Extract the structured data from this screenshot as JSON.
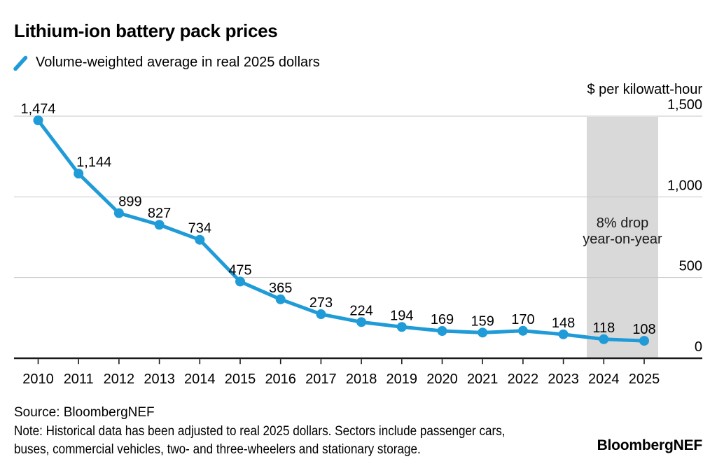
{
  "chart_data": {
    "type": "line",
    "title": "Lithium-ion battery pack prices",
    "legend": "Volume-weighted average in real 2025 dollars",
    "unit_label": "$ per kilowatt-hour",
    "categories": [
      "2010",
      "2011",
      "2012",
      "2013",
      "2014",
      "2015",
      "2016",
      "2017",
      "2018",
      "2019",
      "2020",
      "2021",
      "2022",
      "2023",
      "2024",
      "2025"
    ],
    "values": [
      1474,
      1144,
      899,
      827,
      734,
      475,
      365,
      273,
      224,
      194,
      169,
      159,
      170,
      148,
      118,
      108
    ],
    "point_labels": [
      "1,474",
      "1,144",
      "899",
      "827",
      "734",
      "475",
      "365",
      "273",
      "224",
      "194",
      "169",
      "159",
      "170",
      "148",
      "118",
      "108"
    ],
    "ylim": [
      0,
      1500
    ],
    "yticks": [
      {
        "value": 0,
        "label": "0"
      },
      {
        "value": 500,
        "label": "500"
      },
      {
        "value": 1000,
        "label": "1,000"
      },
      {
        "value": 1500,
        "label": "1,500"
      }
    ],
    "grid": true,
    "legend_position": "top-left",
    "highlight_band": {
      "categories": [
        "2024",
        "2025"
      ],
      "annotation_lines": [
        "8% drop",
        "year-on-year"
      ]
    },
    "colors": {
      "line": "#1f9bd7",
      "band": "#d9d9d9",
      "grid": "#c7c7c7",
      "axis": "#1a1a1a",
      "text": "#000000"
    }
  },
  "footer": {
    "source": "Source: BloombergNEF",
    "note_line1": "Note: Historical data has been adjusted to real 2025 dollars. Sectors include passenger cars,",
    "note_line2": "buses, commercial vehicles, two- and three-wheelers and stationary storage.",
    "brand": "BloombergNEF"
  }
}
